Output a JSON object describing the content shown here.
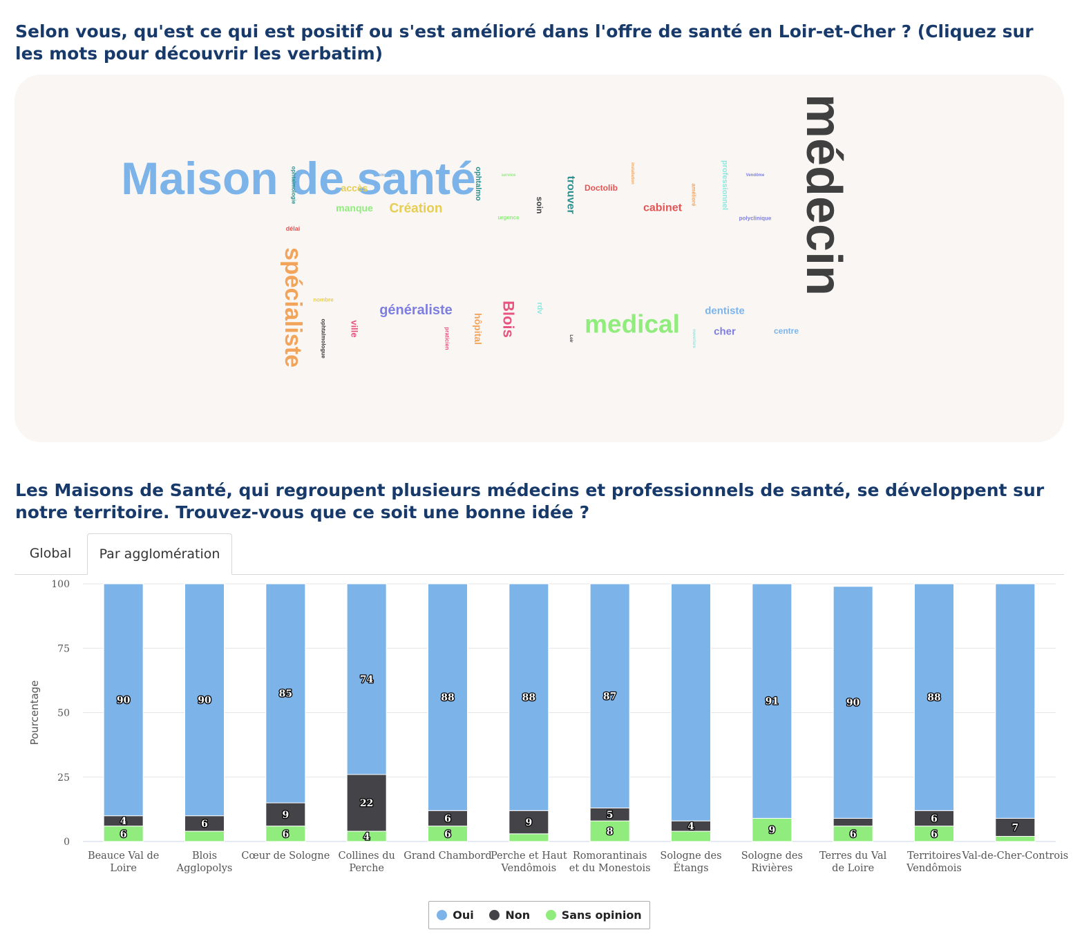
{
  "question1": "Selon vous, qu'est ce qui est positif ou s'est amélioré dans l'offre de santé en Loir-et-Cher ? (Cliquez sur les mots pour découvrir les verbatim)",
  "question2": "Les Maisons de Santé, qui regroupent plusieurs médecins et professionnels de santé, se développent sur notre territoire. Trouvez-vous que ce soit une bonne idée ?",
  "tabs": [
    "Global",
    "Par agglomération"
  ],
  "word_cloud": [
    {
      "text": "Maison de santé",
      "color": "#7cb4ea",
      "size": "xl",
      "rotated": false
    },
    {
      "text": "médecin",
      "color": "#404040",
      "size": "xl",
      "rotated": true
    },
    {
      "text": "spécialiste",
      "color": "#f3a45b",
      "size": "l",
      "rotated": true
    },
    {
      "text": "medical",
      "color": "#90ec7d",
      "size": "l",
      "rotated": false
    },
    {
      "text": "généraliste",
      "color": "#7d7ee0",
      "size": "m",
      "rotated": false
    },
    {
      "text": "Création",
      "color": "#e6ce55",
      "size": "m",
      "rotated": false
    },
    {
      "text": "Blois",
      "color": "#e9547e",
      "size": "m",
      "rotated": true
    },
    {
      "text": "cabinet",
      "color": "#e25555",
      "size": "m",
      "rotated": false
    },
    {
      "text": "trouver",
      "color": "#2b908f",
      "size": "m",
      "rotated": true
    },
    {
      "text": "dentiste",
      "color": "#7cb4ea",
      "size": "s",
      "rotated": false
    },
    {
      "text": "cher",
      "color": "#7d7ee0",
      "size": "s",
      "rotated": false
    },
    {
      "text": "accès",
      "color": "#e6ce55",
      "size": "s",
      "rotated": false
    },
    {
      "text": "manque",
      "color": "#90ec7d",
      "size": "s",
      "rotated": false
    },
    {
      "text": "hôpital",
      "color": "#f3a45b",
      "size": "s",
      "rotated": true
    },
    {
      "text": "ville",
      "color": "#e9547e",
      "size": "s",
      "rotated": true
    },
    {
      "text": "Doctolib",
      "color": "#e25555",
      "size": "s",
      "rotated": false
    },
    {
      "text": "professionnel",
      "color": "#8ee8e0",
      "size": "s",
      "rotated": true
    },
    {
      "text": "centre",
      "color": "#7cb4ea",
      "size": "s",
      "rotated": false
    },
    {
      "text": "soin",
      "color": "#404040",
      "size": "s",
      "rotated": true
    },
    {
      "text": "ophtalmo",
      "color": "#2b908f",
      "size": "s",
      "rotated": true
    },
    {
      "text": "rdv",
      "color": "#8ee8e0",
      "size": "s",
      "rotated": true
    },
    {
      "text": "ophtalmologie",
      "color": "#2b908f",
      "size": "xs",
      "rotated": true
    },
    {
      "text": "ophtalmologue",
      "color": "#404040",
      "size": "xs",
      "rotated": true
    },
    {
      "text": "délai",
      "color": "#e25555",
      "size": "xs",
      "rotated": false
    },
    {
      "text": "nombre",
      "color": "#e6ce55",
      "size": "xs",
      "rotated": false
    },
    {
      "text": "urgence",
      "color": "#90ec7d",
      "size": "xs",
      "rotated": false
    },
    {
      "text": "polyclinique",
      "color": "#7d7ee0",
      "size": "xs",
      "rotated": false
    },
    {
      "text": "amélioré",
      "color": "#f3a45b",
      "size": "xs",
      "rotated": true
    },
    {
      "text": "praticien",
      "color": "#e9547e",
      "size": "xs",
      "rotated": true
    },
    {
      "text": "commune",
      "color": "#7cb4ea",
      "size": "xs",
      "rotated": false
    },
    {
      "text": "service",
      "color": "#90ec7d",
      "size": "xs",
      "rotated": false
    },
    {
      "text": "installation",
      "color": "#f3a45b",
      "size": "xs",
      "rotated": true
    },
    {
      "text": "Vendôme",
      "color": "#7d7ee0",
      "size": "xs",
      "rotated": false
    },
    {
      "text": "Loir",
      "color": "#404040",
      "size": "xs",
      "rotated": true
    },
    {
      "text": "ouverture",
      "color": "#8ee8e0",
      "size": "xs",
      "rotated": true
    }
  ],
  "chart_data": {
    "type": "bar",
    "stacked": true,
    "categories": [
      "Beauce Val de Loire",
      "Blois Agglopolys",
      "Cœur de Sologne",
      "Collines du Perche",
      "Grand Chambord",
      "Perche et Haut Vendômois",
      "Romorantinais et du Monestois",
      "Sologne des Étangs",
      "Sologne des Rivières",
      "Terres du Val de Loire",
      "Territoires Vendômois",
      "Val-de-Cher-Controis"
    ],
    "series": [
      {
        "name": "Oui",
        "color": "#7cb4ea",
        "values": [
          90,
          90,
          85,
          74,
          88,
          88,
          87,
          92,
          91,
          90,
          88,
          91
        ],
        "labels": [
          "90",
          "90",
          "85",
          "74",
          "88",
          "88",
          "87",
          "",
          "91",
          "90",
          "88",
          ""
        ]
      },
      {
        "name": "Non",
        "color": "#434348",
        "values": [
          4,
          6,
          9,
          22,
          6,
          9,
          5,
          4,
          0,
          3,
          6,
          7
        ],
        "labels": [
          "4",
          "6",
          "9",
          "22",
          "6",
          "9",
          "5",
          "4",
          "",
          "",
          "6",
          "7"
        ]
      },
      {
        "name": "Sans opinion",
        "color": "#90ed7d",
        "values": [
          6,
          4,
          6,
          4,
          6,
          3,
          8,
          4,
          9,
          6,
          6,
          2
        ],
        "labels": [
          "6",
          "",
          "6",
          "4",
          "6",
          "",
          "8",
          "",
          "9",
          "6",
          "6",
          ""
        ]
      }
    ],
    "title": "",
    "xlabel": "",
    "ylabel": "Pourcentage",
    "ylim": [
      0,
      100
    ],
    "yticks": [
      0,
      25,
      50,
      75,
      100
    ],
    "grid": true,
    "legend": "bottom-center"
  }
}
